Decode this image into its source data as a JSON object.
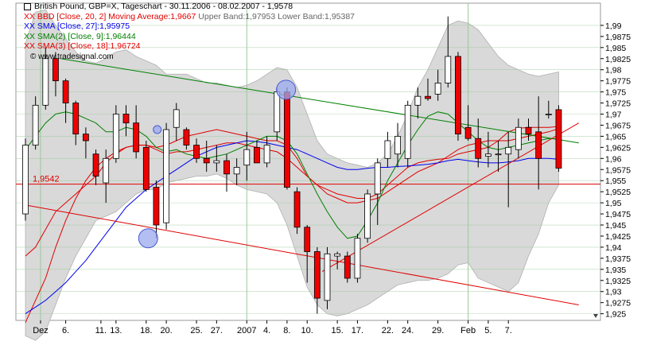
{
  "chart_data": {
    "type": "candlestick",
    "title": "British Pound, GBP=X, Tageschart - 30.11.2006 - 08.02.2007 - 1,9578",
    "legend": [
      {
        "text": "XX BBD [Close, 20, 2] Moving Average:1,9667",
        "extra": " Upper Band:1,97953 Lower Band:1,95387",
        "color": "#e00000"
      },
      {
        "text": "XX SMA [Close, 27]:1,95975",
        "extra": "",
        "color": "#0000ee"
      },
      {
        "text": "XX SMA(2) [Close, 9]:1,96444",
        "extra": "",
        "color": "#008000"
      },
      {
        "text": "XX SMA(3) [Close, 18]:1,96724",
        "extra": "",
        "color": "#e00000"
      }
    ],
    "watermark": "© www.tradesignal.com",
    "ylim": [
      1.9235,
      1.995
    ],
    "y_ticks": [
      "1,99",
      "1,9875",
      "1,985",
      "1,9825",
      "1,98",
      "1,9775",
      "1,975",
      "1,9725",
      "1,97",
      "1,9675",
      "1,965",
      "1,9625",
      "1,96",
      "1,9575",
      "1,955",
      "1,9525",
      "1,95",
      "1,9475",
      "1,945",
      "1,9425",
      "1,94",
      "1,9375",
      "1,935",
      "1,9325",
      "1,93",
      "1,9275",
      "1,925"
    ],
    "y_tick_values": [
      1.99,
      1.9875,
      1.985,
      1.9825,
      1.98,
      1.9775,
      1.975,
      1.9725,
      1.97,
      1.9675,
      1.965,
      1.9625,
      1.96,
      1.9575,
      1.955,
      1.9525,
      1.95,
      1.9475,
      1.945,
      1.9425,
      1.94,
      1.9375,
      1.935,
      1.9325,
      1.93,
      1.9275,
      1.925
    ],
    "x_labels": [
      "Dez",
      "6.",
      "11.",
      "13.",
      "18.",
      "20.",
      "25.",
      "27.",
      "2007",
      "4.",
      "8.",
      "10.",
      "15.",
      "17.",
      "22.",
      "24.",
      "29.",
      "Feb",
      "5.",
      "7."
    ],
    "x_label_bar_index": [
      1.5,
      4,
      7.5,
      9,
      12,
      14,
      17,
      19,
      22,
      24,
      26,
      28,
      31,
      33,
      36,
      38,
      41,
      44,
      46,
      48
    ],
    "horizontal_line": {
      "value": 1.9542,
      "label": "1,9542"
    },
    "candles": [
      {
        "o": 1.9475,
        "h": 1.9645,
        "l": 1.946,
        "c": 1.963
      },
      {
        "o": 1.963,
        "h": 1.974,
        "l": 1.962,
        "c": 1.972
      },
      {
        "o": 1.972,
        "h": 1.985,
        "l": 1.971,
        "c": 1.9825
      },
      {
        "o": 1.9825,
        "h": 1.984,
        "l": 1.974,
        "c": 1.9775
      },
      {
        "o": 1.9775,
        "h": 1.978,
        "l": 1.968,
        "c": 1.9725
      },
      {
        "o": 1.9725,
        "h": 1.973,
        "l": 1.963,
        "c": 1.9655
      },
      {
        "o": 1.9655,
        "h": 1.967,
        "l": 1.96,
        "c": 1.964
      },
      {
        "o": 1.961,
        "h": 1.962,
        "l": 1.954,
        "c": 1.956
      },
      {
        "o": 1.9545,
        "h": 1.962,
        "l": 1.95,
        "c": 1.96
      },
      {
        "o": 1.96,
        "h": 1.972,
        "l": 1.959,
        "c": 1.97
      },
      {
        "o": 1.97,
        "h": 1.972,
        "l": 1.965,
        "c": 1.968
      },
      {
        "o": 1.968,
        "h": 1.972,
        "l": 1.96,
        "c": 1.9615
      },
      {
        "o": 1.9625,
        "h": 1.964,
        "l": 1.9525,
        "c": 1.953
      },
      {
        "o": 1.9535,
        "h": 1.955,
        "l": 1.942,
        "c": 1.945
      },
      {
        "o": 1.9455,
        "h": 1.968,
        "l": 1.944,
        "c": 1.9665
      },
      {
        "o": 1.967,
        "h": 1.9725,
        "l": 1.964,
        "c": 1.971
      },
      {
        "o": 1.9665,
        "h": 1.967,
        "l": 1.962,
        "c": 1.963
      },
      {
        "o": 1.963,
        "h": 1.9645,
        "l": 1.959,
        "c": 1.96
      },
      {
        "o": 1.96,
        "h": 1.964,
        "l": 1.957,
        "c": 1.959
      },
      {
        "o": 1.959,
        "h": 1.963,
        "l": 1.957,
        "c": 1.9595
      },
      {
        "o": 1.9595,
        "h": 1.961,
        "l": 1.9525,
        "c": 1.9565
      },
      {
        "o": 1.9565,
        "h": 1.96,
        "l": 1.954,
        "c": 1.958
      },
      {
        "o": 1.9585,
        "h": 1.966,
        "l": 1.955,
        "c": 1.962
      },
      {
        "o": 1.9625,
        "h": 1.964,
        "l": 1.959,
        "c": 1.959
      },
      {
        "o": 1.959,
        "h": 1.965,
        "l": 1.958,
        "c": 1.963
      },
      {
        "o": 1.966,
        "h": 1.976,
        "l": 1.964,
        "c": 1.975
      },
      {
        "o": 1.975,
        "h": 1.976,
        "l": 1.953,
        "c": 1.9535
      },
      {
        "o": 1.9525,
        "h": 1.9535,
        "l": 1.943,
        "c": 1.9445
      },
      {
        "o": 1.9445,
        "h": 1.945,
        "l": 1.932,
        "c": 1.939
      },
      {
        "o": 1.939,
        "h": 1.94,
        "l": 1.925,
        "c": 1.9285
      },
      {
        "o": 1.928,
        "h": 1.94,
        "l": 1.926,
        "c": 1.9385
      },
      {
        "o": 1.938,
        "h": 1.939,
        "l": 1.935,
        "c": 1.9385
      },
      {
        "o": 1.938,
        "h": 1.939,
        "l": 1.932,
        "c": 1.933
      },
      {
        "o": 1.933,
        "h": 1.943,
        "l": 1.932,
        "c": 1.942
      },
      {
        "o": 1.942,
        "h": 1.953,
        "l": 1.941,
        "c": 1.952
      },
      {
        "o": 1.952,
        "h": 1.96,
        "l": 1.945,
        "c": 1.959
      },
      {
        "o": 1.96,
        "h": 1.966,
        "l": 1.958,
        "c": 1.964
      },
      {
        "o": 1.961,
        "h": 1.968,
        "l": 1.958,
        "c": 1.965
      },
      {
        "o": 1.96,
        "h": 1.973,
        "l": 1.958,
        "c": 1.972
      },
      {
        "o": 1.972,
        "h": 1.976,
        "l": 1.969,
        "c": 1.974
      },
      {
        "o": 1.974,
        "h": 1.978,
        "l": 1.973,
        "c": 1.9735
      },
      {
        "o": 1.9745,
        "h": 1.98,
        "l": 1.973,
        "c": 1.977
      },
      {
        "o": 1.977,
        "h": 1.992,
        "l": 1.976,
        "c": 1.983
      },
      {
        "o": 1.983,
        "h": 1.984,
        "l": 1.964,
        "c": 1.9655
      },
      {
        "o": 1.967,
        "h": 1.972,
        "l": 1.964,
        "c": 1.9645
      },
      {
        "o": 1.9645,
        "h": 1.969,
        "l": 1.958,
        "c": 1.96
      },
      {
        "o": 1.9605,
        "h": 1.966,
        "l": 1.958,
        "c": 1.961
      },
      {
        "o": 1.961,
        "h": 1.964,
        "l": 1.957,
        "c": 1.961
      },
      {
        "o": 1.961,
        "h": 1.966,
        "l": 1.949,
        "c": 1.9625
      },
      {
        "o": 1.962,
        "h": 1.969,
        "l": 1.96,
        "c": 1.967
      },
      {
        "o": 1.967,
        "h": 1.969,
        "l": 1.964,
        "c": 1.9655
      },
      {
        "o": 1.966,
        "h": 1.974,
        "l": 1.953,
        "c": 1.96
      },
      {
        "o": 1.97,
        "h": 1.973,
        "l": 1.969,
        "c": 1.97
      },
      {
        "o": 1.971,
        "h": 1.972,
        "l": 1.957,
        "c": 1.9578
      }
    ],
    "upper_band": [
      1.986,
      1.993,
      1.9935,
      1.99,
      1.987,
      1.984,
      1.982,
      1.9815,
      1.9825,
      1.984,
      1.9845,
      1.983,
      1.982,
      1.981,
      1.979,
      1.979,
      1.979,
      1.978,
      1.977,
      1.977,
      1.9765,
      1.976,
      1.9765,
      1.9775,
      1.979,
      1.9805,
      1.98,
      1.976,
      1.97,
      1.964,
      1.961,
      1.96,
      1.959,
      1.9585,
      1.958,
      1.959,
      1.961,
      1.965,
      1.97,
      1.976,
      1.98,
      1.985,
      1.99,
      1.991,
      1.9905,
      1.989,
      1.986,
      1.983,
      1.981,
      1.98,
      1.979,
      1.9785,
      1.979,
      1.9795
    ],
    "lower_band": [
      1.92,
      1.919,
      1.921,
      1.927,
      1.933,
      1.938,
      1.942,
      1.946,
      1.947,
      1.948,
      1.95,
      1.952,
      1.953,
      1.953,
      1.9545,
      1.955,
      1.9555,
      1.956,
      1.956,
      1.9565,
      1.9555,
      1.954,
      1.953,
      1.9525,
      1.952,
      1.95,
      1.945,
      1.938,
      1.931,
      1.927,
      1.925,
      1.9245,
      1.925,
      1.926,
      1.927,
      1.9285,
      1.93,
      1.9315,
      1.932,
      1.9325,
      1.9325,
      1.933,
      1.934,
      1.936,
      1.9365,
      1.933,
      1.932,
      1.931,
      1.93,
      1.932,
      1.938,
      1.943,
      1.95,
      1.954
    ],
    "sma20": [
      1.923,
      1.928,
      1.933,
      1.94,
      1.946,
      1.951,
      1.955,
      1.958,
      1.96,
      1.9615,
      1.9625,
      1.963,
      1.963,
      1.9625,
      1.963,
      1.964,
      1.965,
      1.9655,
      1.966,
      1.9665,
      1.966,
      1.9655,
      1.965,
      1.9645,
      1.964,
      1.964,
      1.963,
      1.96,
      1.956,
      1.954,
      1.952,
      1.951,
      1.95,
      1.95,
      1.9505,
      1.951,
      1.9525,
      1.954,
      1.9555,
      1.957,
      1.958,
      1.959,
      1.9605,
      1.962,
      1.963,
      1.9635,
      1.964,
      1.964,
      1.964,
      1.9645,
      1.965,
      1.9655,
      1.966,
      1.9667
    ],
    "sma27": [
      1.925,
      1.9265,
      1.928,
      1.93,
      1.932,
      1.9345,
      1.937,
      1.94,
      1.943,
      1.946,
      1.949,
      1.951,
      1.953,
      1.9545,
      1.956,
      1.9575,
      1.959,
      1.9605,
      1.9615,
      1.9625,
      1.963,
      1.9635,
      1.964,
      1.9638,
      1.9635,
      1.963,
      1.9625,
      1.962,
      1.961,
      1.96,
      1.959,
      1.958,
      1.9575,
      1.9575,
      1.9578,
      1.958,
      1.958,
      1.9582,
      1.9583,
      1.9585,
      1.9587,
      1.959,
      1.9595,
      1.9598,
      1.9595,
      1.9592,
      1.959,
      1.959,
      1.9592,
      1.9595,
      1.96,
      1.96,
      1.96,
      1.9598
    ],
    "sma9": [
      1.962,
      1.965,
      1.968,
      1.97,
      1.9705,
      1.97,
      1.969,
      1.968,
      1.966,
      1.966,
      1.967,
      1.9665,
      1.965,
      1.9625,
      1.9615,
      1.962,
      1.961,
      1.9605,
      1.96,
      1.9605,
      1.961,
      1.962,
      1.963,
      1.964,
      1.965,
      1.965,
      1.964,
      1.961,
      1.9565,
      1.952,
      1.948,
      1.9445,
      1.942,
      1.9425,
      1.946,
      1.95,
      1.955,
      1.959,
      1.963,
      1.9665,
      1.9695,
      1.9705,
      1.97,
      1.968,
      1.966,
      1.964,
      1.9625,
      1.962,
      1.9625,
      1.963,
      1.9635,
      1.964,
      1.9645,
      1.9644
    ],
    "sma18": [
      1.938,
      1.94,
      1.944,
      1.948,
      1.95,
      1.952,
      1.954,
      1.956,
      1.959,
      1.961,
      1.9625,
      1.963,
      1.963,
      1.962,
      1.961,
      1.9615,
      1.9615,
      1.962,
      1.9625,
      1.963,
      1.9635,
      1.9635,
      1.963,
      1.9625,
      1.962,
      1.9615,
      1.96,
      1.958,
      1.956,
      1.954,
      1.953,
      1.952,
      1.9515,
      1.951,
      1.951,
      1.952,
      1.954,
      1.956,
      1.958,
      1.959,
      1.9595,
      1.9598,
      1.96,
      1.961,
      1.9615,
      1.962,
      1.9625,
      1.964,
      1.966,
      1.9668,
      1.967,
      1.967,
      1.967,
      1.9672
    ],
    "trendlines": [
      {
        "name": "green-resistance",
        "color": "#008000",
        "points": [
          [
            3.5,
            1.9825
          ],
          [
            55,
            1.9635
          ]
        ]
      },
      {
        "name": "red-down",
        "color": "#e00000",
        "points": [
          [
            0,
            1.9495
          ],
          [
            55,
            1.927
          ]
        ]
      },
      {
        "name": "red-up",
        "color": "#e00000",
        "points": [
          [
            29.5,
            1.9345
          ],
          [
            55,
            1.968
          ]
        ]
      }
    ],
    "circles": [
      {
        "index": 12.2,
        "value": 1.942
      },
      {
        "index": 13.1,
        "value": 1.9665
      },
      {
        "index": 25.9,
        "value": 1.9755
      }
    ],
    "vertical_lines_bar_index": [
      1.5,
      22,
      44
    ],
    "colors": {
      "up": "#ffffff",
      "down": "#ee0000",
      "band_fill": "#d9d9d9",
      "grid": "#9ac89a"
    }
  }
}
